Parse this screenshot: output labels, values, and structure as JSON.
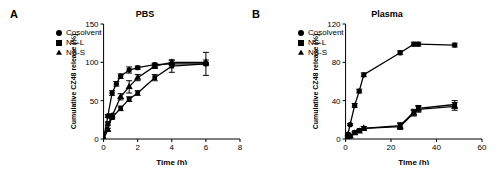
{
  "chart_data": [
    {
      "type": "line",
      "annotations": [
        "A"
      ],
      "title": "PBS",
      "xlabel": "Time (h)",
      "ylabel": "Cumulative CZ48 release (%)",
      "xlim": [
        0,
        8
      ],
      "xticks": [
        0,
        2,
        4,
        6,
        8
      ],
      "ylim": [
        0,
        150
      ],
      "yticks": [
        0,
        50,
        100,
        150
      ],
      "grid": false,
      "legend": "upper left",
      "series": [
        {
          "name": "Cosolvent",
          "color": "#000000",
          "marker": "circle",
          "x": [
            0,
            0.25,
            0.5,
            0.75,
            1,
            1.5,
            2,
            3,
            4,
            6
          ],
          "values": [
            0,
            30,
            60,
            72,
            82,
            90,
            93,
            97,
            98,
            98
          ],
          "errors": [
            0,
            2,
            3,
            3,
            3,
            4,
            2,
            2,
            2,
            2
          ]
        },
        {
          "name": "NS-L",
          "color": "#000000",
          "marker": "square",
          "x": [
            0,
            0.25,
            0.5,
            1,
            1.5,
            2,
            3,
            4,
            6
          ],
          "values": [
            0,
            20,
            28,
            40,
            52,
            60,
            80,
            95,
            98
          ],
          "errors": [
            0,
            2,
            2,
            3,
            3,
            3,
            4,
            8,
            15
          ]
        },
        {
          "name": "NS-S",
          "color": "#000000",
          "marker": "triangle",
          "x": [
            0,
            0.25,
            0.5,
            1,
            1.5,
            2,
            3,
            4,
            6
          ],
          "values": [
            0,
            12,
            30,
            55,
            68,
            80,
            95,
            100,
            100
          ],
          "errors": [
            0,
            2,
            3,
            4,
            8,
            4,
            3,
            3,
            3
          ]
        }
      ]
    },
    {
      "type": "line",
      "annotations": [
        "B"
      ],
      "title": "Plasma",
      "xlabel": "Time (h)",
      "ylabel": "Cumulative CZ48 release (%)",
      "xlim": [
        0,
        60
      ],
      "xticks": [
        0,
        20,
        40,
        60
      ],
      "ylim": [
        0,
        120
      ],
      "yticks": [
        0,
        40,
        80,
        120
      ],
      "grid": false,
      "legend": "upper left",
      "series": [
        {
          "name": "Cosolvent",
          "color": "#000000",
          "marker": "circle",
          "x": [
            0,
            1,
            2,
            4,
            6,
            8,
            24,
            30,
            32,
            48
          ],
          "values": [
            0,
            5,
            15,
            35,
            50,
            67,
            90,
            99,
            99,
            98
          ],
          "errors": [
            0,
            1,
            1,
            2,
            2,
            2,
            2,
            2,
            2,
            2
          ]
        },
        {
          "name": "NS-L",
          "color": "#000000",
          "marker": "square",
          "x": [
            0,
            1,
            2,
            4,
            6,
            8,
            24,
            30,
            32,
            48
          ],
          "values": [
            0,
            2,
            3,
            7,
            9,
            11,
            14,
            28,
            32,
            36
          ],
          "errors": [
            0,
            1,
            1,
            1,
            1,
            2,
            3,
            3,
            3,
            4
          ]
        },
        {
          "name": "NS-S",
          "color": "#000000",
          "marker": "triangle",
          "x": [
            0,
            1,
            2,
            4,
            6,
            8,
            24,
            30,
            32,
            48
          ],
          "values": [
            0,
            2,
            3,
            6,
            8,
            11,
            13,
            27,
            31,
            34
          ],
          "errors": [
            0,
            1,
            1,
            1,
            1,
            2,
            3,
            3,
            3,
            4
          ]
        }
      ]
    }
  ]
}
